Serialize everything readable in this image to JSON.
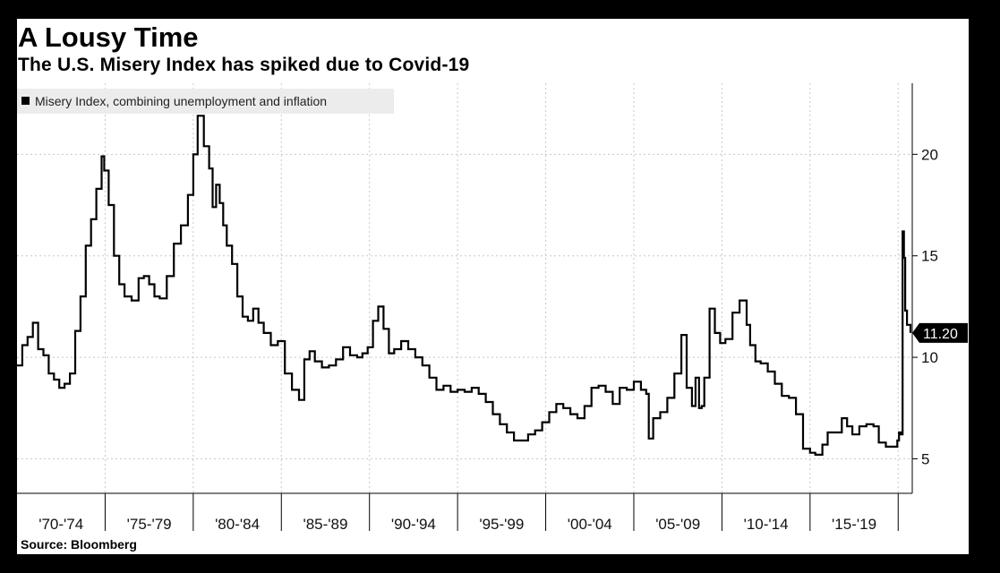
{
  "header": {
    "title": "A Lousy Time",
    "subtitle": "The U.S. Misery Index has spiked due to Covid-19"
  },
  "footer": {
    "source": "Source: Bloomberg"
  },
  "colors": {
    "background": "#000000",
    "panel": "#ffffff",
    "line": "#000000",
    "grid": "#c8c8c8",
    "legend_bg": "#ececec"
  },
  "chart_data": {
    "type": "line",
    "title": "A Lousy Time",
    "subtitle": "The U.S. Misery Index has spiked due to Covid-19",
    "legend": [
      "Misery Index, combining unemployment and inflation"
    ],
    "legend_position": "top-left",
    "xlabel": "",
    "ylabel": "",
    "x_tick_labels": [
      "'70-'74",
      "'75-'79",
      "'80-'84",
      "'85-'89",
      "'90-'94",
      "'95-'99",
      "'00-'04",
      "'05-'09",
      "'10-'14",
      "'15-'19"
    ],
    "y_ticks": [
      5,
      10,
      15,
      20
    ],
    "y_tick_labels": [
      "5",
      "10",
      "15",
      "20"
    ],
    "ylim": [
      3.3,
      23.5
    ],
    "xlim": [
      1970.0,
      2020.8
    ],
    "grid": true,
    "y_axis_position": "right",
    "last_value_label": "11.20",
    "series": [
      {
        "name": "Misery Index, combining unemployment and inflation",
        "x": [
          1970.0,
          1970.3,
          1970.6,
          1970.9,
          1971.2,
          1971.5,
          1971.8,
          1972.1,
          1972.4,
          1972.7,
          1973.0,
          1973.3,
          1973.6,
          1973.9,
          1974.2,
          1974.5,
          1974.8,
          1974.95,
          1975.2,
          1975.5,
          1975.8,
          1976.1,
          1976.5,
          1976.9,
          1977.2,
          1977.5,
          1977.8,
          1978.1,
          1978.5,
          1978.9,
          1979.3,
          1979.7,
          1980.0,
          1980.25,
          1980.6,
          1980.9,
          1981.1,
          1981.3,
          1981.5,
          1981.7,
          1981.9,
          1982.2,
          1982.5,
          1982.8,
          1983.1,
          1983.4,
          1983.7,
          1984.0,
          1984.4,
          1984.8,
          1985.2,
          1985.6,
          1986.0,
          1986.3,
          1986.6,
          1986.9,
          1987.3,
          1987.7,
          1988.1,
          1988.5,
          1988.9,
          1989.3,
          1989.6,
          1989.9,
          1990.2,
          1990.5,
          1990.8,
          1991.1,
          1991.4,
          1991.8,
          1992.2,
          1992.6,
          1993.0,
          1993.4,
          1993.8,
          1994.2,
          1994.6,
          1995.0,
          1995.4,
          1995.8,
          1996.2,
          1996.6,
          1997.0,
          1997.4,
          1997.8,
          1998.2,
          1998.6,
          1999.0,
          1999.4,
          1999.8,
          2000.2,
          2000.6,
          2001.0,
          2001.4,
          2001.8,
          2002.2,
          2002.6,
          2003.0,
          2003.4,
          2003.8,
          2004.2,
          2004.6,
          2005.0,
          2005.4,
          2005.7,
          2005.85,
          2006.1,
          2006.5,
          2006.9,
          2007.3,
          2007.7,
          2008.0,
          2008.3,
          2008.5,
          2008.7,
          2008.85,
          2009.0,
          2009.3,
          2009.6,
          2009.9,
          2010.2,
          2010.6,
          2011.0,
          2011.4,
          2011.6,
          2011.9,
          2012.2,
          2012.6,
          2013.0,
          2013.4,
          2013.8,
          2014.2,
          2014.6,
          2015.0,
          2015.3,
          2015.7,
          2016.0,
          2016.4,
          2016.8,
          2017.1,
          2017.4,
          2017.8,
          2018.2,
          2018.6,
          2018.9,
          2019.3,
          2019.7,
          2019.95,
          2020.05,
          2020.15,
          2020.25,
          2020.33,
          2020.4,
          2020.5,
          2020.6,
          2020.7
        ],
        "values": [
          9.6,
          10.6,
          11.0,
          11.7,
          10.4,
          10.1,
          9.2,
          8.9,
          8.5,
          8.7,
          9.2,
          11.3,
          13.0,
          15.5,
          16.8,
          18.3,
          19.9,
          19.2,
          17.5,
          15.0,
          13.6,
          13.0,
          12.8,
          13.9,
          14.0,
          13.6,
          13.0,
          12.9,
          14.0,
          15.6,
          16.5,
          18.0,
          20.0,
          21.9,
          20.4,
          19.3,
          17.4,
          18.5,
          17.6,
          16.5,
          15.5,
          14.6,
          13.0,
          12.0,
          11.8,
          12.4,
          11.7,
          11.2,
          10.6,
          10.8,
          9.2,
          8.4,
          7.9,
          9.9,
          10.3,
          9.8,
          9.5,
          9.6,
          9.9,
          10.5,
          10.1,
          10.0,
          10.2,
          10.5,
          11.8,
          12.5,
          11.4,
          10.2,
          10.4,
          10.8,
          10.4,
          10.0,
          9.6,
          9.0,
          8.4,
          8.6,
          8.3,
          8.4,
          8.3,
          8.5,
          8.2,
          7.8,
          7.2,
          6.7,
          6.3,
          5.9,
          5.9,
          6.2,
          6.4,
          6.8,
          7.3,
          7.7,
          7.5,
          7.2,
          7.0,
          7.6,
          8.5,
          8.6,
          8.3,
          7.7,
          8.5,
          8.4,
          8.8,
          8.4,
          8.2,
          6.0,
          7.0,
          7.3,
          8.0,
          9.2,
          11.1,
          8.5,
          7.6,
          9.0,
          7.5,
          7.6,
          9.0,
          12.4,
          11.2,
          10.7,
          10.9,
          12.2,
          12.8,
          11.6,
          10.6,
          9.8,
          9.7,
          9.3,
          8.7,
          8.1,
          8.0,
          7.2,
          5.5,
          5.3,
          5.2,
          5.7,
          6.3,
          6.3,
          7.0,
          6.6,
          6.2,
          6.6,
          6.7,
          6.6,
          5.8,
          5.6,
          5.6,
          5.9,
          6.3,
          6.2,
          16.2,
          14.9,
          12.3,
          11.6,
          11.6,
          11.2
        ]
      }
    ]
  }
}
